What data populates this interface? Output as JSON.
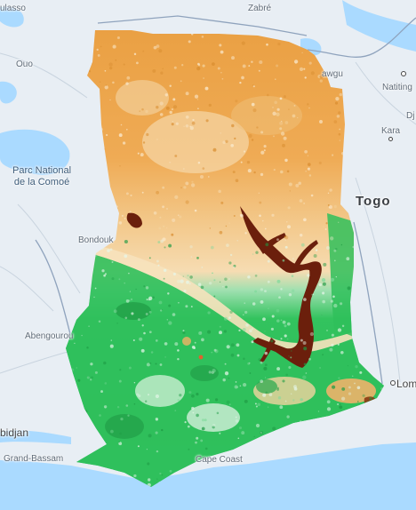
{
  "map": {
    "country_label": "Togo",
    "park_label_line1": "Parc National",
    "park_label_line2": "de la Comoé",
    "places": {
      "ulasso": "ulasso",
      "zabre": "Zabré",
      "ouo": "Ouo",
      "awgu": "awgu",
      "natiting": "Natiting",
      "dj": "Dj",
      "kara": "Kara",
      "bondouk": "Bondouk",
      "abengourou": "Abengourou",
      "abidjan": "bidjan",
      "grand_bassam": "Grand-Bassam",
      "cape_coast": "Cape Coast",
      "lome": "Lom"
    },
    "colors": {
      "water": "#aadaff",
      "land": "#e8eef4",
      "dry": "#e9a443",
      "pale": "#f8e6c4",
      "green": "#2ec25a",
      "dark_green": "#1f9a45",
      "lake": "#6b1f0c"
    }
  }
}
